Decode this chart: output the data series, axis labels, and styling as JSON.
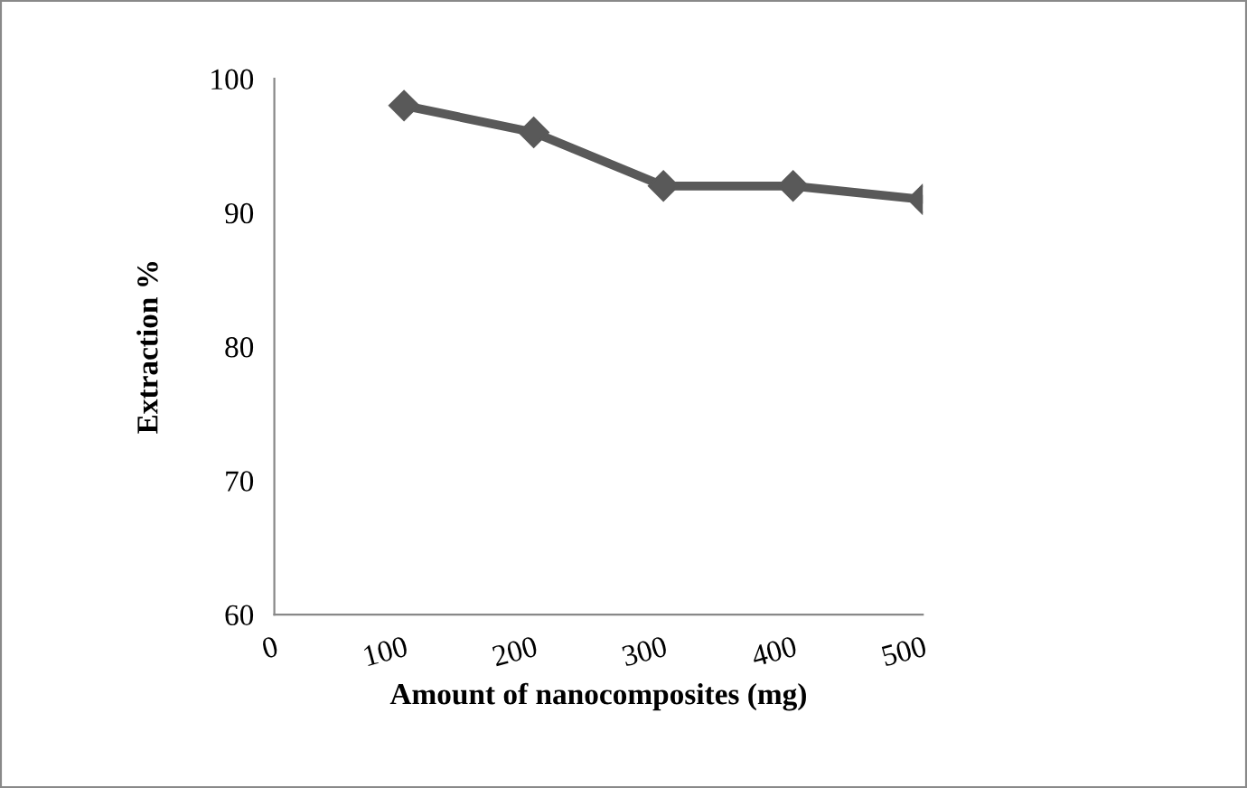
{
  "chart_data": {
    "type": "line",
    "xlabel": "Amount of nanocomposites (mg)",
    "ylabel": "Extraction %",
    "x": [
      100,
      200,
      300,
      400,
      500
    ],
    "series": [
      {
        "color": "#595959",
        "values": [
          98,
          96,
          92,
          92,
          91
        ]
      }
    ],
    "xlim": [
      0,
      500
    ],
    "xticks": [
      0,
      100,
      200,
      300,
      400,
      500
    ],
    "ylim": [
      60,
      100
    ],
    "yticks": [
      60,
      70,
      80,
      90,
      100
    ],
    "marker": "diamond",
    "line_style": "solid",
    "grid": false,
    "legend": false
  }
}
